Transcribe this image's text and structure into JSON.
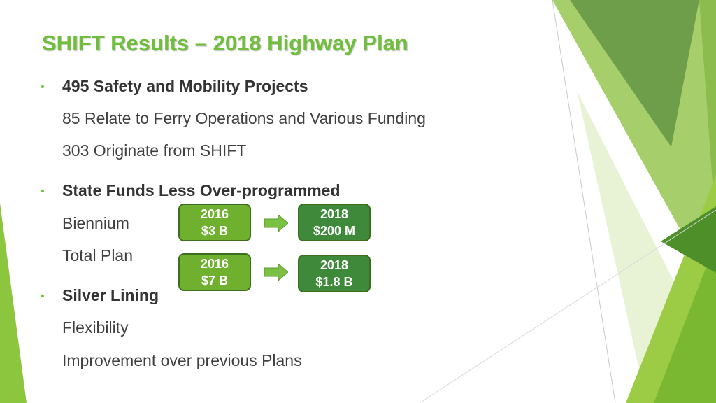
{
  "slide": {
    "title": "SHIFT Results – 2018 Highway Plan",
    "sections": [
      {
        "heading": "495 Safety and Mobility Projects",
        "lines": [
          "85 Relate to Ferry Operations and Various Funding",
          "303 Originate from SHIFT"
        ]
      },
      {
        "heading": "State Funds Less Over-programmed",
        "lines": [
          "Biennium",
          "Total Plan"
        ]
      },
      {
        "heading": "Silver Lining",
        "lines": [
          "Flexibility",
          "Improvement over previous Plans"
        ]
      }
    ],
    "bullet_glyph": "•",
    "comparison": {
      "biennium": {
        "from_year": "2016",
        "from_value": "$3 B",
        "to_year": "2018",
        "to_value": "$200 M"
      },
      "total_plan": {
        "from_year": "2016",
        "from_value": "$7 B",
        "to_year": "2018",
        "to_value": "$1.8 B"
      }
    },
    "colors": {
      "title": "#6fbf3a",
      "accent_green": "#6fb12e",
      "dark_green": "#3e8a3a",
      "arrow": "#7ac143"
    },
    "icons": [
      "right-arrow-icon"
    ]
  }
}
